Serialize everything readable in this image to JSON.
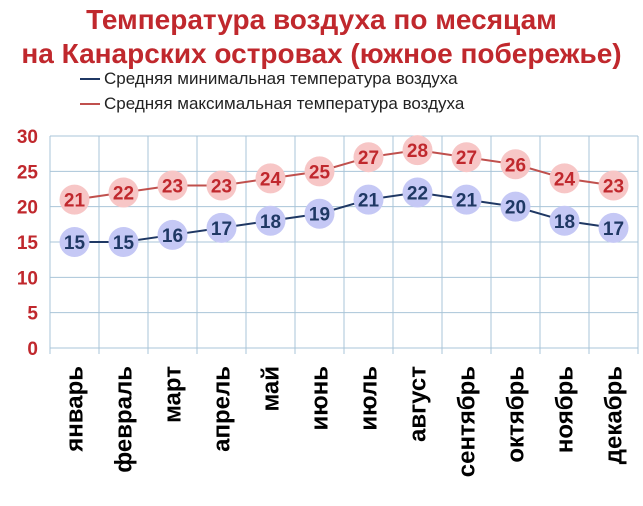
{
  "chart_data": {
    "type": "line",
    "title_line1": "Температура воздуха по месяцам",
    "title_line2": "на Канарских островах (южное побережье)",
    "categories": [
      "январь",
      "февраль",
      "март",
      "апрель",
      "май",
      "июнь",
      "июль",
      "август",
      "сентябрь",
      "октябрь",
      "ноябрь",
      "декабрь"
    ],
    "series": [
      {
        "name": "Средняя минимальная температура воздуха",
        "values": [
          15,
          15,
          16,
          17,
          18,
          19,
          21,
          22,
          21,
          20,
          18,
          17
        ],
        "line_color": "#1f3864",
        "marker_color": "#c5c8f5",
        "label_color": "#1f3864"
      },
      {
        "name": "Средняя максимальная температура воздуха",
        "values": [
          21,
          22,
          23,
          23,
          24,
          25,
          27,
          28,
          27,
          26,
          24,
          23
        ],
        "line_color": "#c0504d",
        "marker_color": "#f7c6c6",
        "label_color": "#c0282d"
      }
    ],
    "yticks": [
      0,
      5,
      10,
      15,
      20,
      25,
      30
    ],
    "ylim": [
      0,
      30
    ],
    "grid": true,
    "legend_position": "top"
  }
}
